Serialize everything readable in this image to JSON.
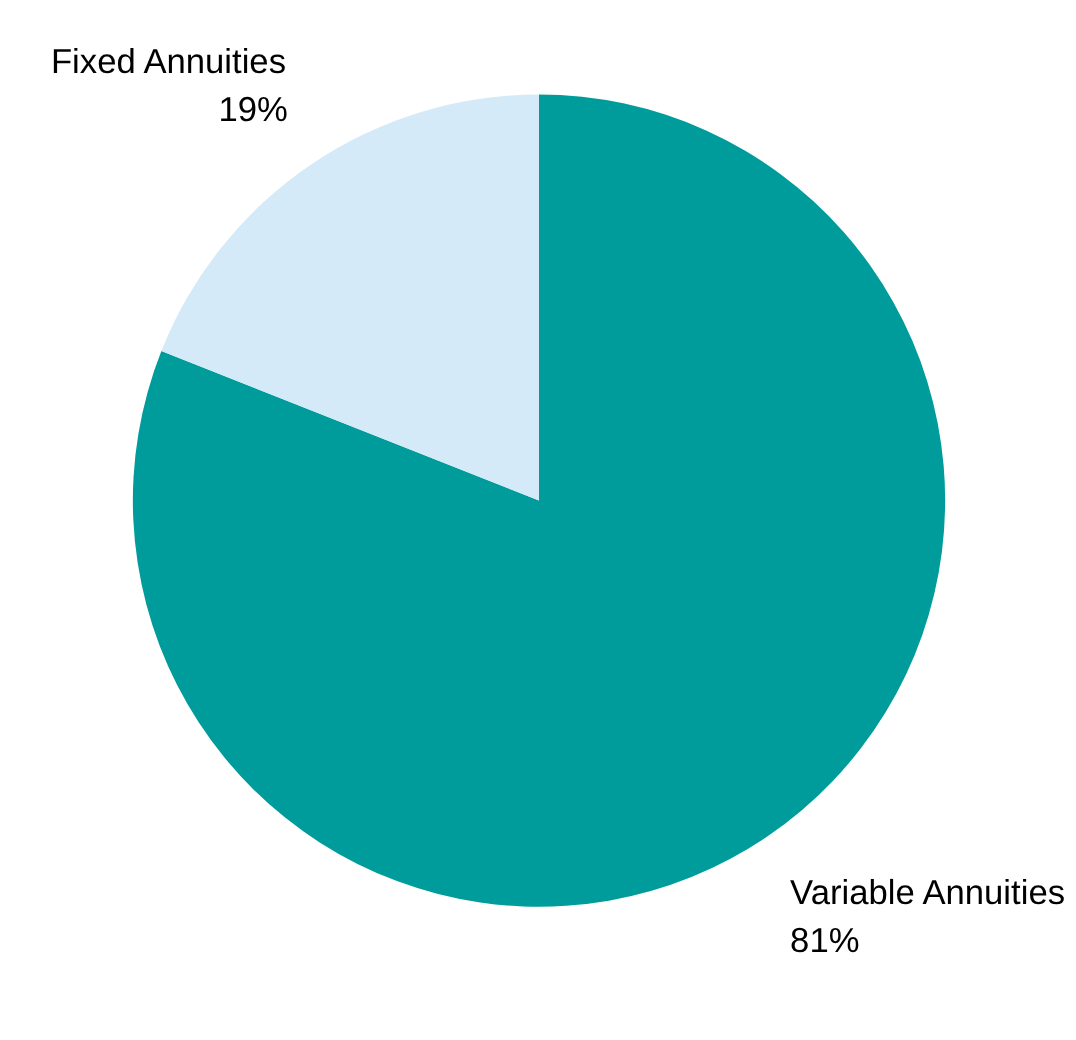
{
  "chart_data": {
    "type": "pie",
    "categories": [
      "Variable Annuities",
      "Fixed Annuities"
    ],
    "values": [
      81,
      19
    ],
    "colors": [
      "#009c9c",
      "#d4eaf8"
    ],
    "value_labels": [
      "81%",
      "19%"
    ]
  }
}
